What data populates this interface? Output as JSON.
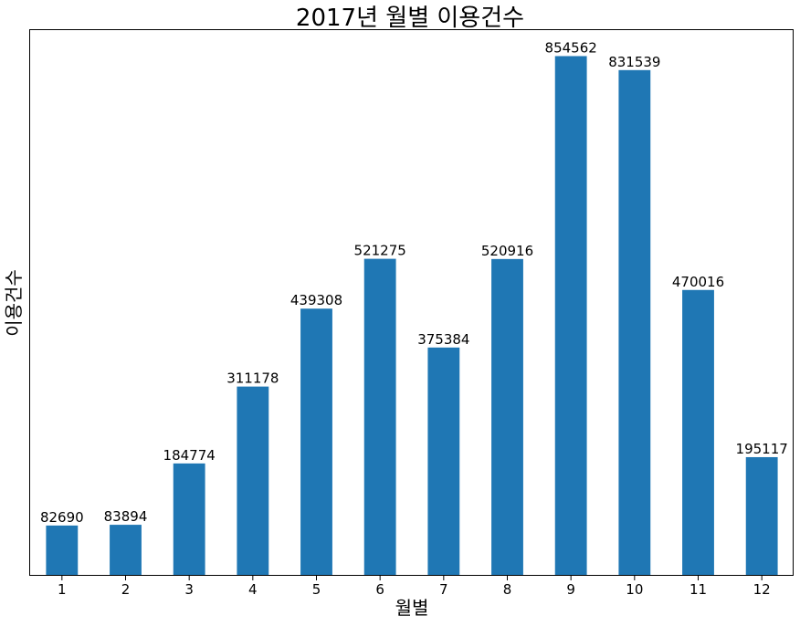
{
  "chart_data": {
    "type": "bar",
    "title": "2017년 월별 이용건수",
    "xlabel": "월별",
    "ylabel": "이용건수",
    "categories": [
      "1",
      "2",
      "3",
      "4",
      "5",
      "6",
      "7",
      "8",
      "9",
      "10",
      "11",
      "12"
    ],
    "values": [
      82690,
      83894,
      184774,
      311178,
      439308,
      521275,
      375384,
      520916,
      854562,
      831539,
      470016,
      195117
    ],
    "ylim": [
      0,
      897290
    ],
    "color": "#1f77b4",
    "grid": false,
    "show_y_ticks": false,
    "data_labels": true
  }
}
